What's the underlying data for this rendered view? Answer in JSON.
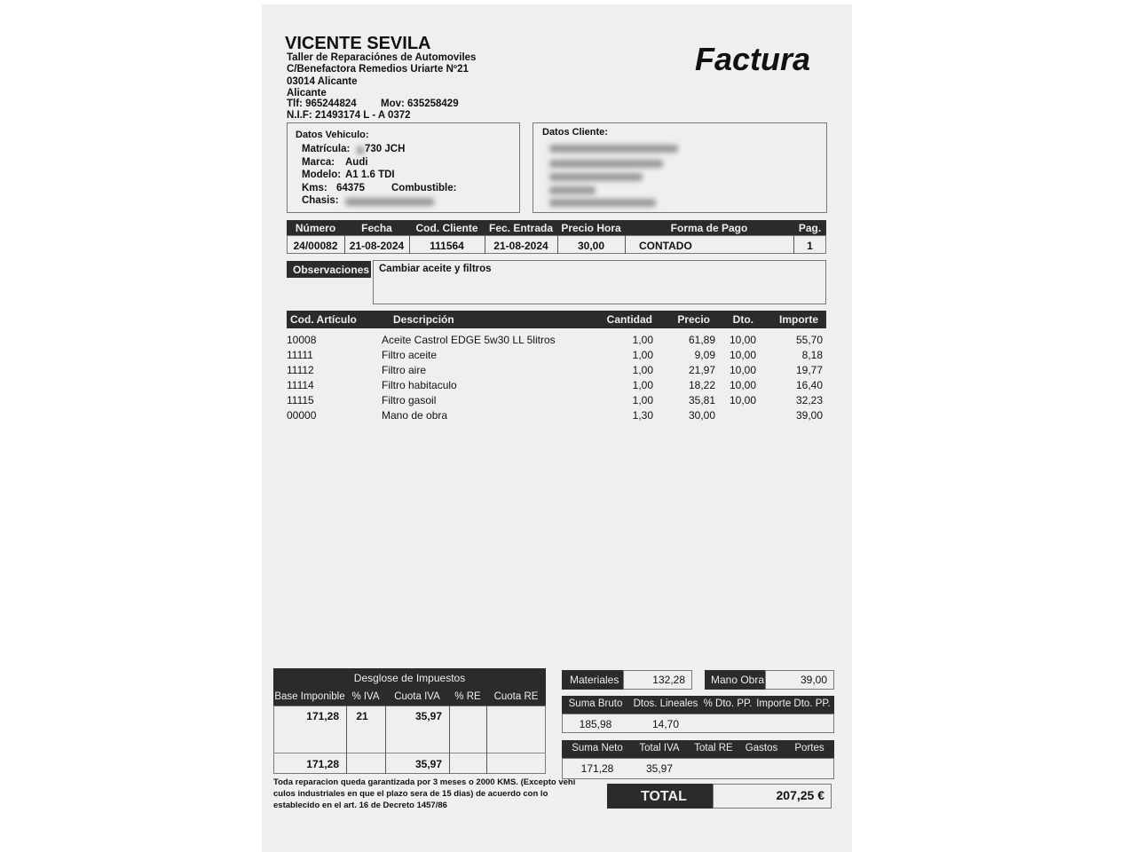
{
  "company": {
    "name": "VICENTE SEVILA",
    "subtitle": "Taller de Reparaciónes de Automoviles",
    "address": "C/Benefactora Remedios Uriarte Nº21",
    "postal": "03014   Alicante",
    "city": "Alicante",
    "phone": "Tlf:  965244824",
    "mobile": "Mov: 635258429",
    "nif": "N.I.F:   21493174 L - A 0372"
  },
  "doc_title": "Factura",
  "vehicle": {
    "heading": "Datos Vehiculo:",
    "matricula_label": "Matrícula:",
    "matricula": "730 JCH",
    "marca_label": "Marca:",
    "marca": "Audi",
    "modelo_label": "Modelo:",
    "modelo": "A1 1.6 TDI",
    "kms_label": "Kms:",
    "kms": "64375",
    "combustible_label": "Combustible:",
    "chasis_label": "Chasis:"
  },
  "client": {
    "heading": "Datos Cliente:"
  },
  "invoice_header": {
    "columns": [
      "Número",
      "Fecha",
      "Cod. Cliente",
      "Fec. Entrada",
      "Precio Hora",
      "Forma de Pago",
      "Pag."
    ],
    "values": [
      "24/00082",
      "21-08-2024",
      "111564",
      "21-08-2024",
      "30,00",
      "CONTADO",
      "1"
    ]
  },
  "observaciones": {
    "label": "Observaciones",
    "text": "Cambiar aceite y filtros"
  },
  "lines": {
    "columns": [
      "Cod. Artículo",
      "Descripción",
      "Cantidad",
      "Precio",
      "Dto.",
      "Importe"
    ],
    "rows": [
      [
        "10008",
        "Aceite Castrol EDGE 5w30 LL 5litros",
        "1,00",
        "61,89",
        "10,00",
        "55,70"
      ],
      [
        "11111",
        "Filtro aceite",
        "1,00",
        "9,09",
        "10,00",
        "8,18"
      ],
      [
        "11112",
        "Filtro aire",
        "1,00",
        "21,97",
        "10,00",
        "19,77"
      ],
      [
        "11114",
        "Filtro habitaculo",
        "1,00",
        "18,22",
        "10,00",
        "16,40"
      ],
      [
        "11115",
        "Filtro gasoil",
        "1,00",
        "35,81",
        "10,00",
        "32,23"
      ],
      [
        "00000",
        "Mano de obra",
        "1,30",
        "30,00",
        "",
        "39,00"
      ]
    ]
  },
  "taxes": {
    "title": "Desglose de Impuestos",
    "columns": [
      "Base Imponible",
      "% IVA",
      "Cuota IVA",
      "% RE",
      "Cuota RE"
    ],
    "row": [
      "171,28",
      "21",
      "35,97",
      "",
      ""
    ],
    "totals": [
      "171,28",
      "",
      "35,97",
      "",
      ""
    ]
  },
  "footer_note": [
    "Toda reparacion queda garantizada por 3  meses o 2000 KMS. (Excepto vehi",
    "culos industriales en que el plazo sera  de 15 dias) de acuerdo con lo",
    "establecido en el art. 16 de Decreto  1457/86"
  ],
  "summary": {
    "materiales_label": "Materiales",
    "materiales": "132,28",
    "mano_obra_label": "Mano Obra",
    "mano_obra": "39,00",
    "bruto_columns": [
      "Suma Bruto",
      "Dtos. Lineales",
      "% Dto. PP.",
      "Importe Dto. PP."
    ],
    "bruto_values": [
      "185,98",
      "14,70",
      "",
      ""
    ],
    "neto_columns": [
      "Suma Neto",
      "Total IVA",
      "Total RE",
      "Gastos",
      "Portes"
    ],
    "neto_values": [
      "171,28",
      "35,97",
      "",
      "",
      ""
    ],
    "total_label": "TOTAL",
    "total": "207,25  €"
  }
}
